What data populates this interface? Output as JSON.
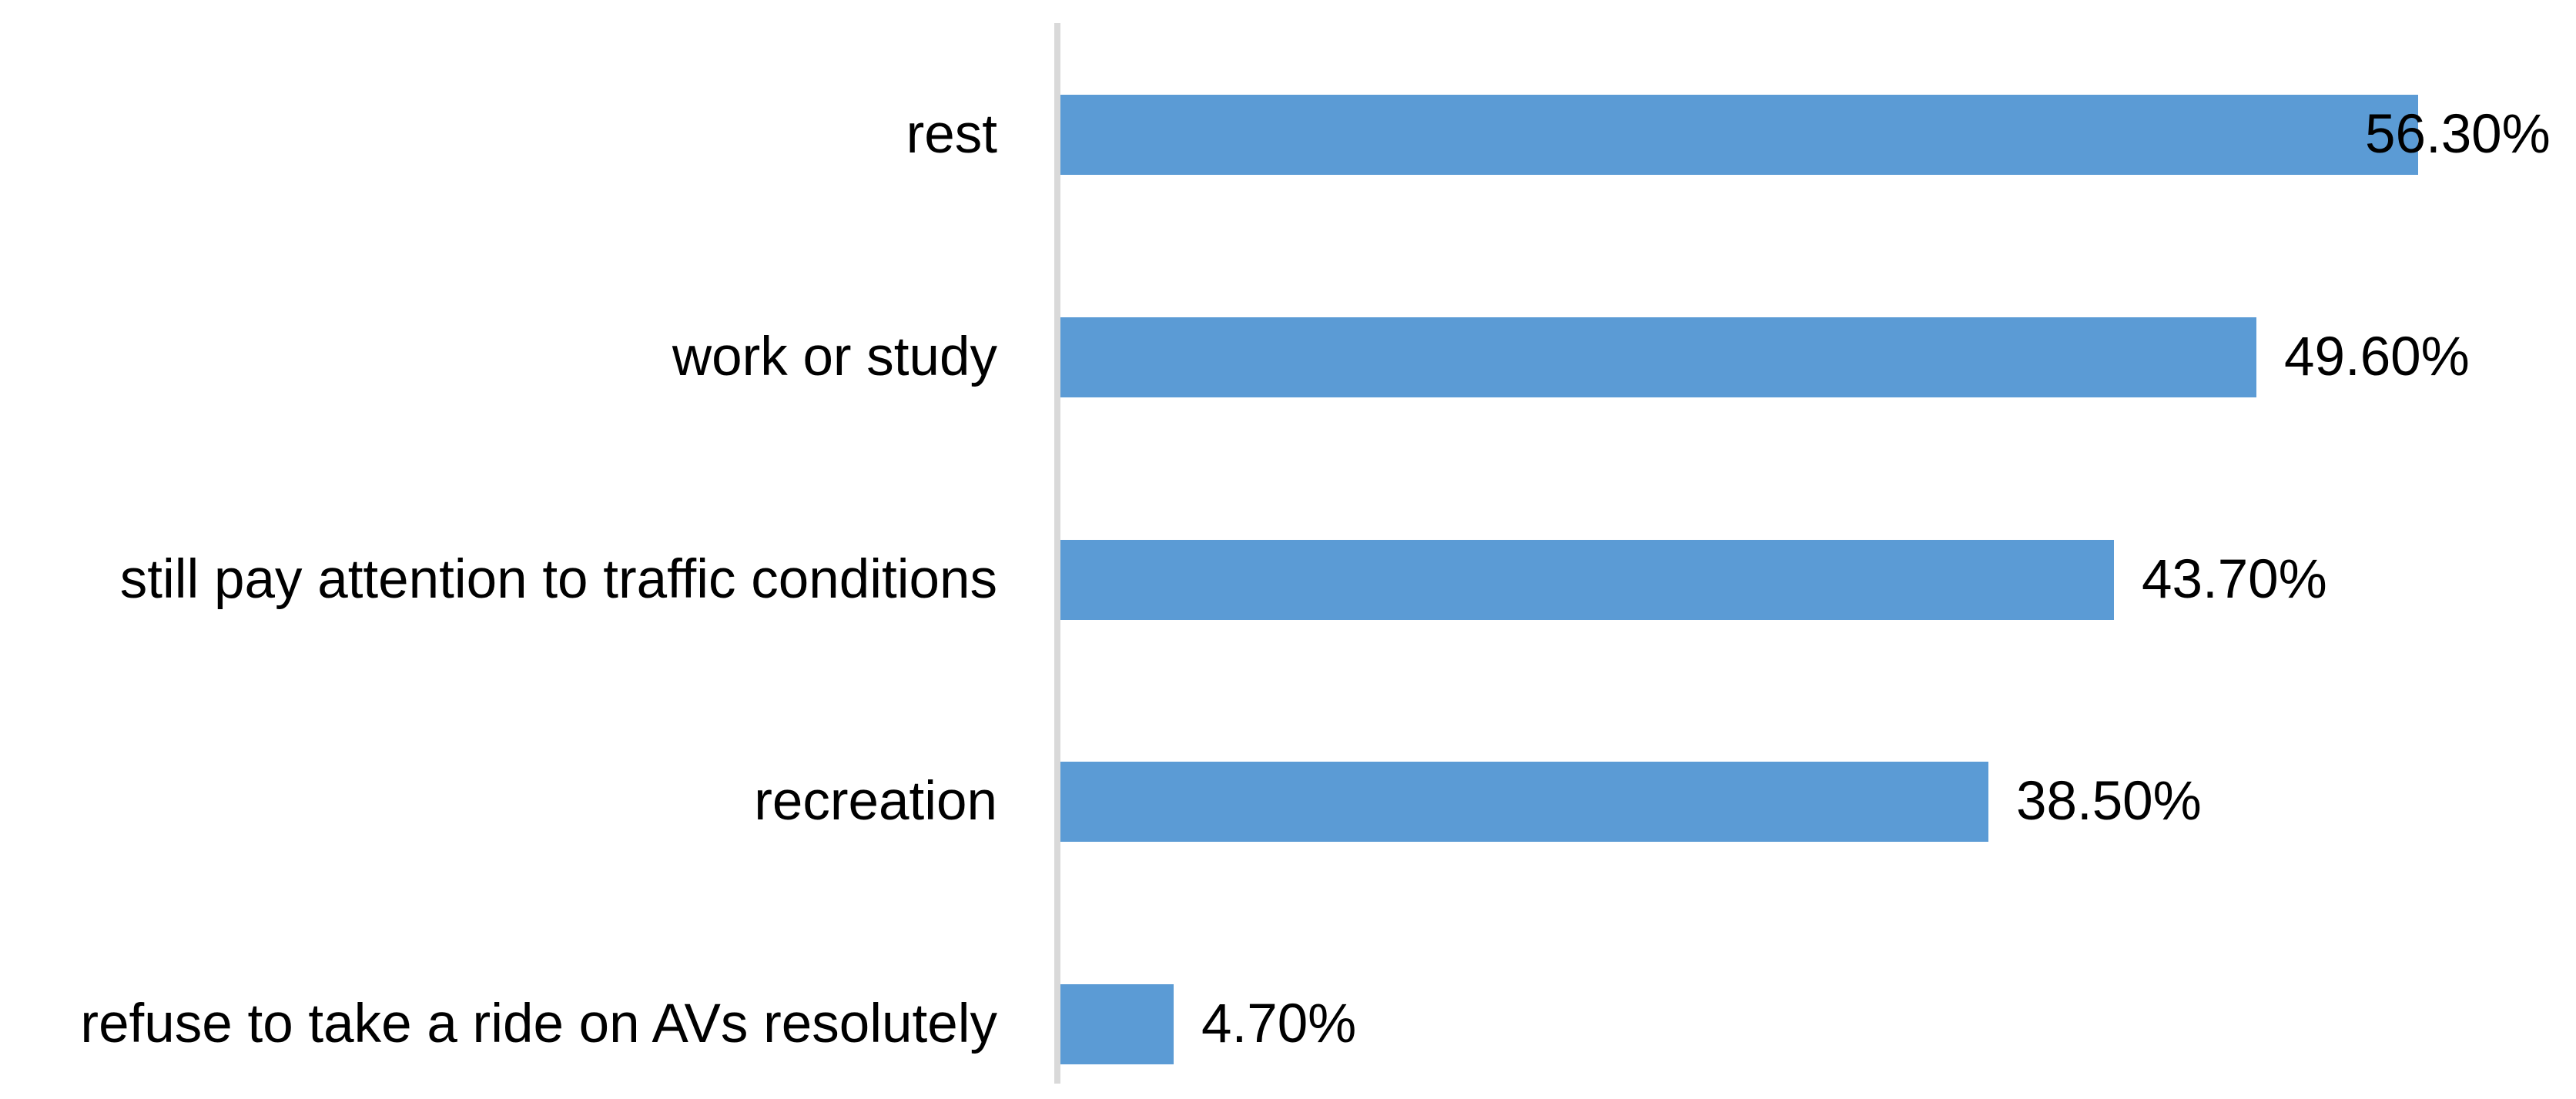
{
  "chart_data": {
    "type": "bar",
    "orientation": "horizontal",
    "title": "",
    "xlabel": "",
    "ylabel": "",
    "categories": [
      "rest",
      "work or study",
      "still pay attention to traffic conditions",
      "recreation",
      "refuse to take a ride on AVs resolutely"
    ],
    "values": [
      56.3,
      49.6,
      43.7,
      38.5,
      4.7
    ],
    "value_labels": [
      "56.30%",
      "49.60%",
      "43.70%",
      "38.50%",
      "4.70%"
    ],
    "xlim": [
      0,
      62.8
    ],
    "grid": false,
    "legend": null,
    "data_label_position": "outside-end",
    "bar_color": "#5B9BD5",
    "axis_line_color": "#D9D9D9",
    "text_color": "#000000",
    "background_color": "#FFFFFF"
  }
}
